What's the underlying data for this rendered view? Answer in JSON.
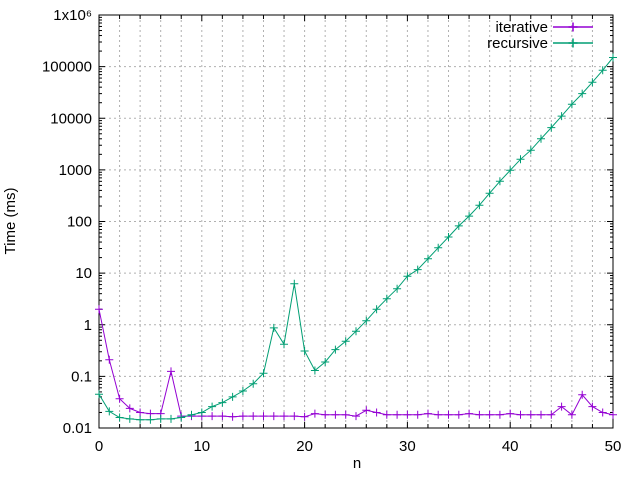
{
  "figure": {
    "background": "#ffffff"
  },
  "chart_data": {
    "type": "line",
    "title": "",
    "xlabel": "n",
    "ylabel": "Time (ms)",
    "x_range": [
      0,
      50
    ],
    "y_range": [
      0.01,
      1000000
    ],
    "y_scale": "log10",
    "grid": true,
    "grid_color": "#b0b0b0",
    "axis_color": "#000000",
    "legend_position": "top-right-inside",
    "x_major_ticks": [
      0,
      10,
      20,
      30,
      40,
      50
    ],
    "x_minor_tick_step": 2,
    "y_tick_values": [
      1000000,
      100000,
      10000,
      1000,
      100,
      10,
      1,
      0.1,
      0.01
    ],
    "y_tick_labels": [
      "1x10⁶",
      "100000",
      "10000",
      "1000",
      "100",
      "10",
      "1",
      "0.1",
      "0.01"
    ],
    "x": [
      0,
      1,
      2,
      3,
      4,
      5,
      6,
      7,
      8,
      9,
      10,
      11,
      12,
      13,
      14,
      15,
      16,
      17,
      18,
      19,
      20,
      21,
      22,
      23,
      24,
      25,
      26,
      27,
      28,
      29,
      30,
      31,
      32,
      33,
      34,
      35,
      36,
      37,
      38,
      39,
      40,
      41,
      42,
      43,
      44,
      45,
      46,
      47,
      48,
      49,
      50
    ],
    "series": [
      {
        "name": "iterative",
        "color": "#9400d3",
        "marker": "plus",
        "values": [
          2.0,
          0.21,
          0.037,
          0.024,
          0.02,
          0.019,
          0.019,
          0.125,
          0.017,
          0.017,
          0.017,
          0.017,
          0.017,
          0.0165,
          0.017,
          0.017,
          0.017,
          0.017,
          0.017,
          0.017,
          0.0165,
          0.019,
          0.018,
          0.018,
          0.018,
          0.017,
          0.022,
          0.02,
          0.018,
          0.018,
          0.018,
          0.018,
          0.019,
          0.018,
          0.018,
          0.018,
          0.019,
          0.018,
          0.018,
          0.018,
          0.019,
          0.018,
          0.018,
          0.018,
          0.018,
          0.026,
          0.018,
          0.044,
          0.026,
          0.02,
          0.018
        ]
      },
      {
        "name": "recursive",
        "color": "#009e73",
        "marker": "plus",
        "values": [
          0.045,
          0.021,
          0.016,
          0.015,
          0.0145,
          0.0145,
          0.015,
          0.015,
          0.016,
          0.018,
          0.02,
          0.026,
          0.031,
          0.04,
          0.052,
          0.072,
          0.115,
          0.87,
          0.42,
          6.2,
          0.31,
          0.13,
          0.19,
          0.33,
          0.48,
          0.75,
          1.2,
          2.0,
          3.2,
          5.0,
          8.7,
          11.7,
          19,
          31,
          50,
          82,
          127,
          207,
          353,
          600,
          980,
          1600,
          2400,
          4000,
          6600,
          11000,
          18700,
          30000,
          50000,
          85000,
          150000
        ]
      }
    ]
  }
}
